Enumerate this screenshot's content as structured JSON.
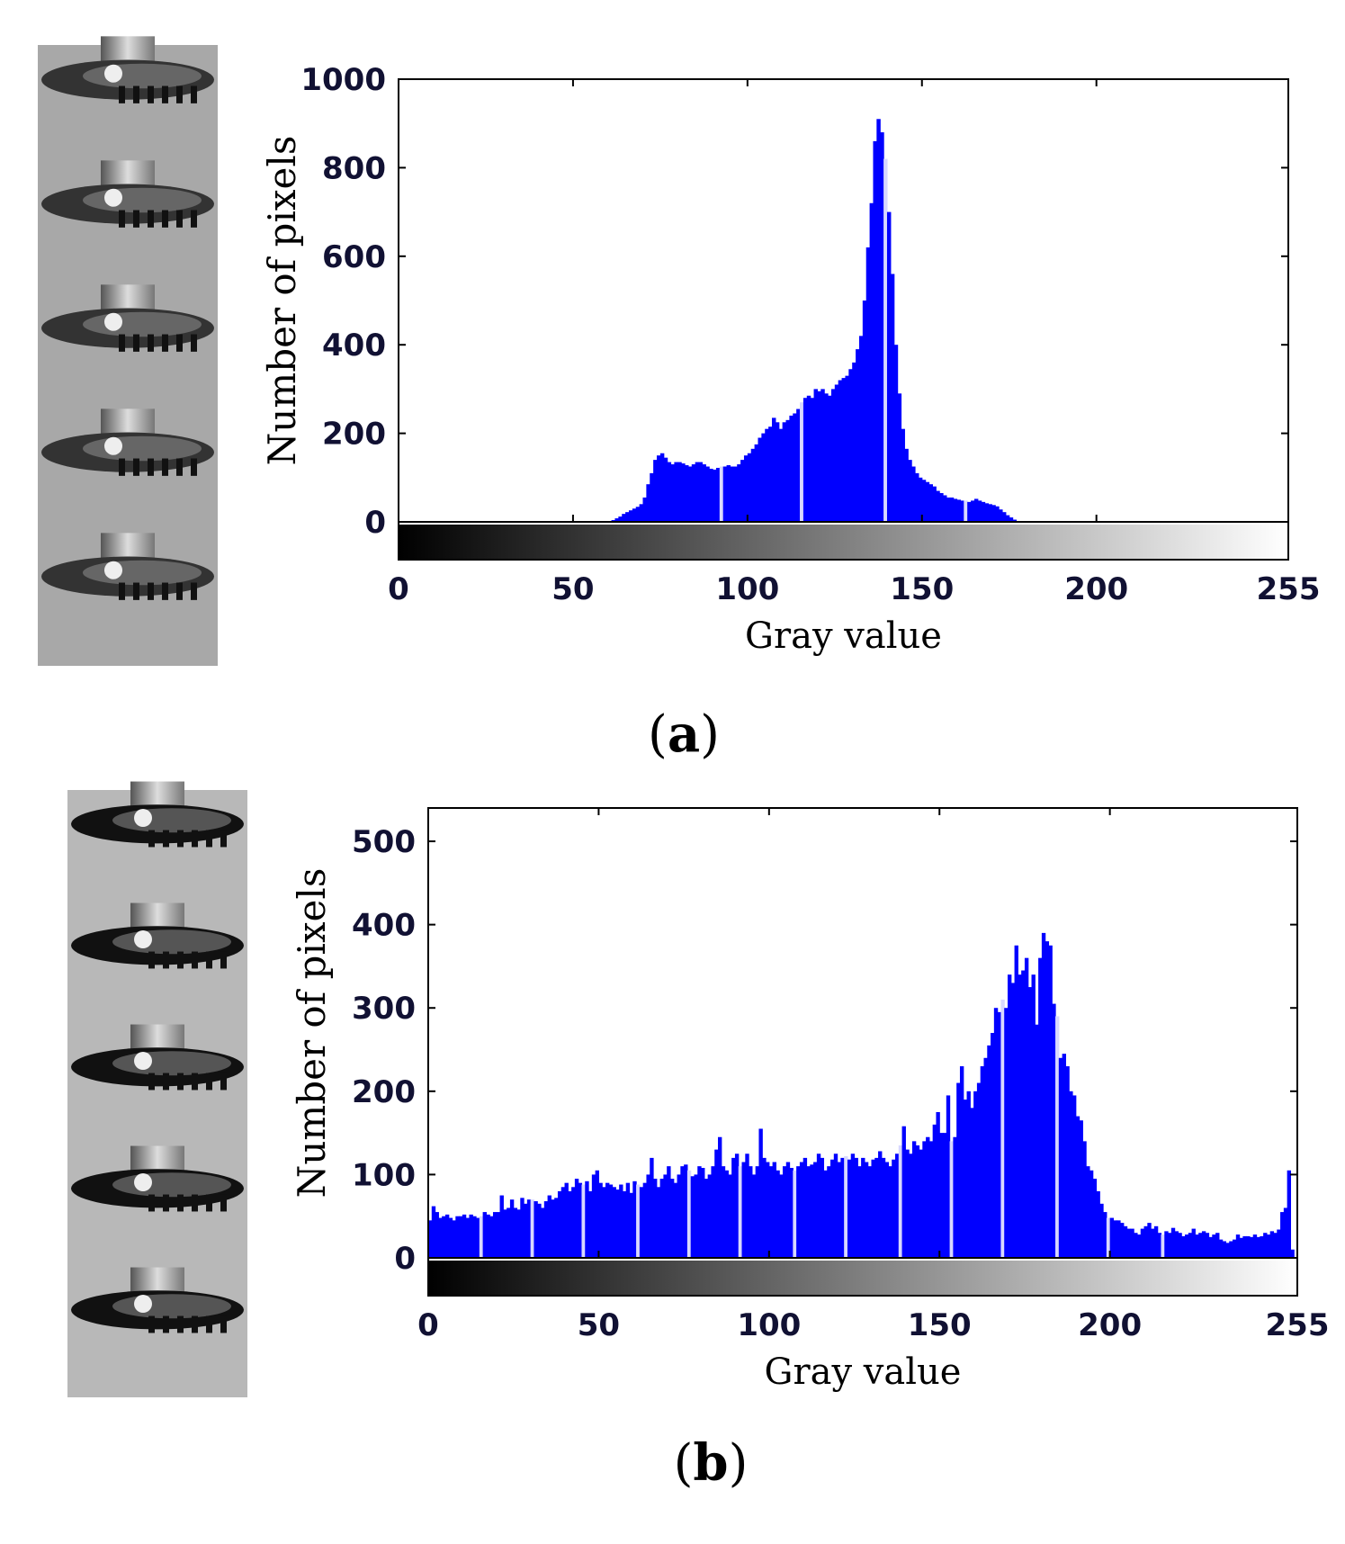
{
  "chart_data": [
    {
      "type": "bar",
      "panel_label": "a",
      "title": "",
      "xlabel": "Gray value",
      "ylabel": "Number of pixels",
      "xlim": [
        0,
        255
      ],
      "ylim": [
        -80,
        1000
      ],
      "xticks": [
        0,
        50,
        100,
        150,
        200,
        255
      ],
      "yticks": [
        0,
        200,
        400,
        600,
        800,
        1000
      ],
      "bar_color": "#0000ff",
      "bin_start": 60,
      "values": [
        2,
        4,
        8,
        12,
        18,
        22,
        26,
        30,
        34,
        40,
        55,
        85,
        110,
        140,
        150,
        155,
        145,
        135,
        130,
        135,
        135,
        132,
        128,
        125,
        130,
        135,
        135,
        130,
        125,
        120,
        118,
        122,
        125,
        125,
        128,
        125,
        125,
        130,
        140,
        150,
        155,
        165,
        175,
        190,
        200,
        210,
        215,
        235,
        225,
        210,
        225,
        230,
        240,
        245,
        255,
        270,
        280,
        285,
        280,
        300,
        295,
        300,
        290,
        285,
        300,
        310,
        320,
        325,
        330,
        345,
        360,
        390,
        420,
        500,
        620,
        720,
        860,
        910,
        880,
        820,
        700,
        560,
        400,
        290,
        210,
        165,
        140,
        125,
        110,
        100,
        95,
        90,
        85,
        80,
        70,
        65,
        60,
        55,
        55,
        52,
        50,
        48,
        48,
        45,
        48,
        52,
        48,
        45,
        42,
        40,
        38,
        35,
        28,
        22,
        15,
        10,
        5,
        2
      ],
      "gaps_at": [
        92,
        115,
        139,
        162,
        186,
        209
      ]
    },
    {
      "type": "bar",
      "panel_label": "b",
      "title": "",
      "xlabel": "Gray value",
      "ylabel": "Number of pixels",
      "xlim": [
        0,
        255
      ],
      "ylim": [
        -45,
        540
      ],
      "xticks": [
        0,
        50,
        100,
        150,
        200,
        255
      ],
      "yticks": [
        0,
        100,
        200,
        300,
        400,
        500
      ],
      "bar_color": "#0000ff",
      "bin_start": 0,
      "values": [
        45,
        62,
        55,
        48,
        50,
        52,
        48,
        45,
        50,
        50,
        52,
        48,
        52,
        50,
        48,
        50,
        55,
        52,
        50,
        55,
        55,
        75,
        58,
        60,
        70,
        60,
        58,
        72,
        65,
        70,
        70,
        68,
        65,
        60,
        68,
        75,
        70,
        72,
        80,
        85,
        90,
        80,
        85,
        95,
        90,
        88,
        92,
        80,
        100,
        105,
        90,
        85,
        90,
        88,
        85,
        82,
        88,
        80,
        90,
        78,
        92,
        88,
        85,
        90,
        100,
        120,
        95,
        85,
        95,
        100,
        110,
        95,
        90,
        100,
        110,
        112,
        105,
        98,
        100,
        110,
        108,
        95,
        100,
        110,
        130,
        145,
        110,
        105,
        100,
        120,
        125,
        110,
        115,
        125,
        110,
        100,
        110,
        155,
        120,
        115,
        110,
        115,
        105,
        100,
        110,
        115,
        108,
        105,
        110,
        115,
        120,
        110,
        112,
        115,
        125,
        120,
        105,
        110,
        118,
        125,
        115,
        120,
        122,
        118,
        125,
        120,
        110,
        120,
        115,
        110,
        118,
        120,
        128,
        120,
        115,
        110,
        118,
        125,
        135,
        158,
        130,
        125,
        140,
        135,
        130,
        140,
        145,
        140,
        160,
        175,
        150,
        150,
        195,
        140,
        145,
        210,
        230,
        190,
        200,
        180,
        200,
        210,
        230,
        240,
        255,
        270,
        300,
        295,
        310,
        300,
        340,
        330,
        375,
        340,
        345,
        360,
        325,
        340,
        280,
        360,
        390,
        380,
        375,
        305,
        290,
        240,
        245,
        230,
        200,
        195,
        170,
        165,
        140,
        110,
        105,
        95,
        80,
        65,
        55,
        48,
        48,
        45,
        45,
        42,
        38,
        35,
        35,
        30,
        28,
        35,
        38,
        42,
        35,
        38,
        30,
        28,
        32,
        30,
        36,
        32,
        30,
        26,
        28,
        30,
        35,
        28,
        30,
        32,
        30,
        25,
        28,
        30,
        22,
        20,
        18,
        20,
        22,
        28,
        24,
        26,
        26,
        25,
        28,
        25,
        26,
        30,
        28,
        32,
        30,
        34,
        55,
        60,
        105,
        10
      ],
      "gaps_at": [
        15,
        30,
        45,
        61,
        76,
        91,
        107,
        122,
        138,
        153,
        168,
        184,
        199,
        215
      ]
    }
  ],
  "panel_labels": {
    "a": "(a)",
    "b": "(b)"
  },
  "colors": {
    "bar": "#0000ff",
    "axis_text": "#111133",
    "frame": "#000000"
  }
}
